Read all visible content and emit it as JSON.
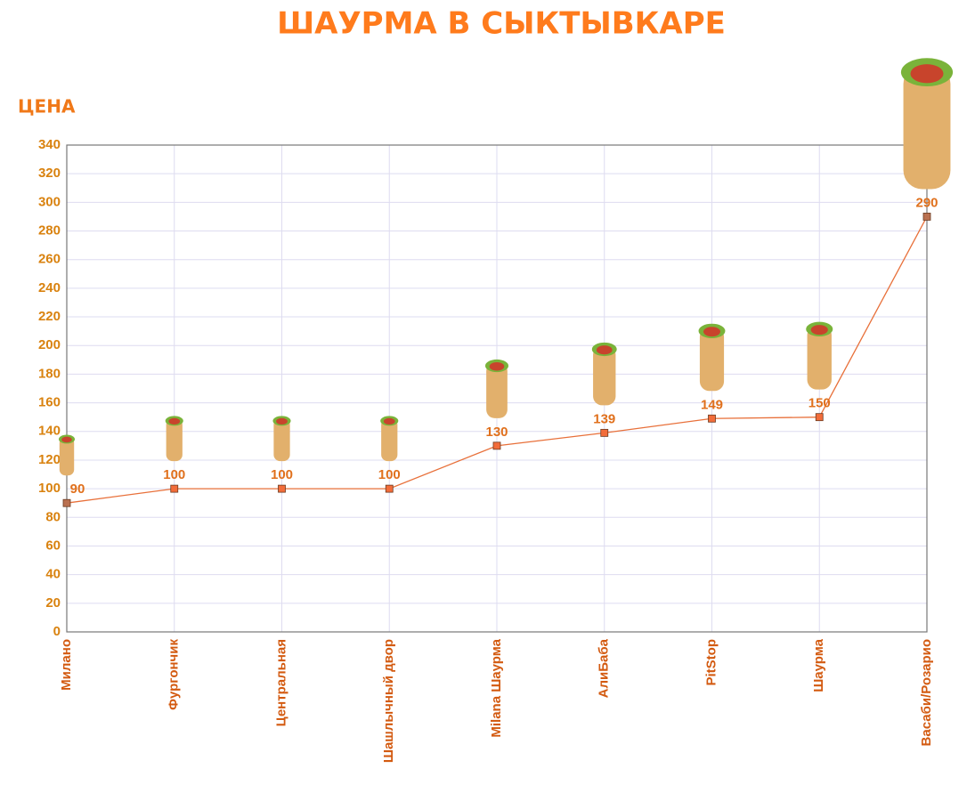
{
  "chart_data": {
    "type": "line",
    "title": "ШАУРМА В СЫКТЫВКАРЕ",
    "y_label": "ЦЕНА",
    "categories": [
      "Милано",
      "Фургончик",
      "Центральная",
      "Шашлычный двор",
      "Milana Шаурма",
      "АлиБаба",
      "PitStop",
      "Шаурма",
      "Васаби/Розарио"
    ],
    "values": [
      90,
      100,
      100,
      100,
      130,
      139,
      149,
      150,
      290
    ],
    "color": "#e8703a",
    "ylim": [
      0,
      340
    ],
    "yticks": [
      0,
      20,
      40,
      60,
      80,
      100,
      120,
      140,
      160,
      180,
      200,
      220,
      240,
      260,
      280,
      300,
      320,
      340
    ],
    "grid": true
  }
}
